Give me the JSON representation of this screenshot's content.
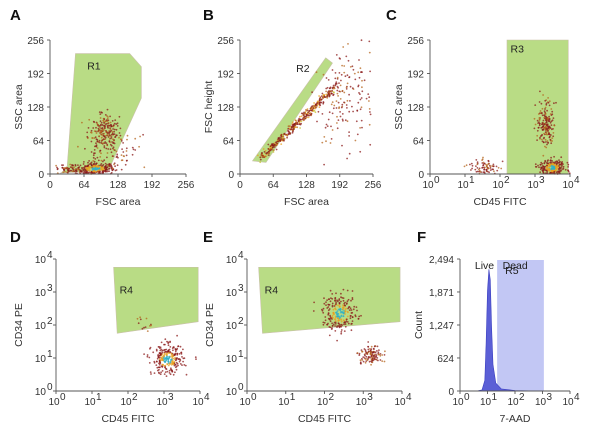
{
  "chart_data": [
    {
      "panel": "A",
      "type": "scatter",
      "xlabel": "FSC area",
      "ylabel": "SSC area",
      "xlim": [
        0,
        256
      ],
      "ylim": [
        0,
        256
      ],
      "scale": "linear",
      "xticks": [
        "0",
        "64",
        "128",
        "192",
        "256"
      ],
      "yticks": [
        "0",
        "64",
        "128",
        "192",
        "256"
      ],
      "gate": {
        "label": "R1",
        "vertices": [
          [
            20,
            2
          ],
          [
            32,
            10
          ],
          [
            48,
            230
          ],
          [
            150,
            230
          ],
          [
            172,
            205
          ],
          [
            172,
            145
          ],
          [
            110,
            7
          ]
        ]
      },
      "clusters": [
        {
          "x": 85,
          "y": 10,
          "sx": 18,
          "sy": 6,
          "n": 260,
          "hot": true
        },
        {
          "x": 100,
          "y": 80,
          "sx": 14,
          "sy": 18,
          "n": 200,
          "hot": false
        },
        {
          "x": 35,
          "y": 8,
          "sx": 12,
          "sy": 4,
          "n": 60,
          "hot": false
        },
        {
          "x": 120,
          "y": 40,
          "sx": 30,
          "sy": 25,
          "n": 90,
          "hot": false
        }
      ]
    },
    {
      "panel": "B",
      "type": "scatter",
      "xlabel": "FSC area",
      "ylabel": "FSC height",
      "xlim": [
        0,
        256
      ],
      "ylim": [
        0,
        256
      ],
      "scale": "linear",
      "xticks": [
        "0",
        "64",
        "128",
        "192",
        "256"
      ],
      "yticks": [
        "0",
        "64",
        "128",
        "192",
        "256"
      ],
      "gate": {
        "label": "R2",
        "vertices": [
          [
            24,
            25
          ],
          [
            165,
            222
          ],
          [
            178,
            212
          ],
          [
            50,
            22
          ]
        ]
      },
      "clusters": [
        {
          "x": 80,
          "y": 70,
          "line": true,
          "n": 260,
          "hot": true
        },
        {
          "x": 200,
          "y": 150,
          "sx": 30,
          "sy": 45,
          "n": 180,
          "hot": false
        },
        {
          "x": 140,
          "y": 130,
          "line": true,
          "n": 120,
          "hot": false
        }
      ]
    },
    {
      "panel": "C",
      "type": "scatter",
      "xlabel": "CD45 FITC",
      "ylabel": "SSC area",
      "xlim": [
        0,
        4
      ],
      "ylim": [
        0,
        256
      ],
      "scale": "log-x",
      "xticks": [
        "10",
        "10",
        "10",
        "10",
        "10"
      ],
      "xtick_exp": [
        "0",
        "1",
        "2",
        "3",
        "4"
      ],
      "yticks": [
        "0",
        "64",
        "128",
        "192",
        "256"
      ],
      "gate": {
        "label": "R3",
        "vertices": [
          [
            2.2,
            0
          ],
          [
            2.2,
            256
          ],
          [
            3.95,
            256
          ],
          [
            3.95,
            0
          ]
        ]
      },
      "clusters": [
        {
          "x": 3.3,
          "y": 95,
          "sx": 0.12,
          "sy": 20,
          "n": 180,
          "hot": false
        },
        {
          "x": 3.5,
          "y": 12,
          "sx": 0.18,
          "sy": 8,
          "n": 260,
          "hot": true
        },
        {
          "x": 1.6,
          "y": 12,
          "sx": 0.25,
          "sy": 8,
          "n": 80,
          "hot": false
        }
      ]
    },
    {
      "panel": "D",
      "type": "scatter",
      "xlabel": "CD45 FITC",
      "ylabel": "CD34 PE",
      "xlim": [
        0,
        4
      ],
      "ylim": [
        0,
        4
      ],
      "scale": "log-log",
      "xticks": [
        "10",
        "10",
        "10",
        "10",
        "10"
      ],
      "xtick_exp": [
        "0",
        "1",
        "2",
        "3",
        "4"
      ],
      "yticks": [
        "10",
        "10",
        "10",
        "10",
        "10"
      ],
      "ytick_exp": [
        "0",
        "1",
        "2",
        "3",
        "4"
      ],
      "gate": {
        "label": "R4",
        "vertices": [
          [
            1.6,
            3.75
          ],
          [
            3.95,
            3.75
          ],
          [
            3.95,
            2.1
          ],
          [
            1.7,
            1.75
          ]
        ]
      },
      "clusters": [
        {
          "x": 3.1,
          "y": 0.95,
          "sx": 0.22,
          "sy": 0.22,
          "n": 280,
          "hot": true
        },
        {
          "x": 2.5,
          "y": 2.0,
          "sx": 0.12,
          "sy": 0.1,
          "n": 12,
          "hot": false
        }
      ]
    },
    {
      "panel": "E",
      "type": "scatter",
      "xlabel": "CD45 FITC",
      "ylabel": "CD34 PE",
      "xlim": [
        0,
        4
      ],
      "ylim": [
        0,
        4
      ],
      "scale": "log-log",
      "xticks": [
        "10",
        "10",
        "10",
        "10",
        "10"
      ],
      "xtick_exp": [
        "0",
        "1",
        "2",
        "3",
        "4"
      ],
      "yticks": [
        "10",
        "10",
        "10",
        "10",
        "10"
      ],
      "ytick_exp": [
        "0",
        "1",
        "2",
        "3",
        "4"
      ],
      "gate": {
        "label": "R4",
        "vertices": [
          [
            0.3,
            3.75
          ],
          [
            3.95,
            3.75
          ],
          [
            3.95,
            2.1
          ],
          [
            0.4,
            1.75
          ]
        ]
      },
      "clusters": [
        {
          "x": 2.4,
          "y": 2.35,
          "sx": 0.22,
          "sy": 0.28,
          "n": 240,
          "hot": true
        },
        {
          "x": 3.2,
          "y": 1.1,
          "sx": 0.15,
          "sy": 0.15,
          "n": 120,
          "hot": false
        }
      ]
    },
    {
      "panel": "F",
      "type": "area",
      "xlabel": "7-AAD",
      "ylabel": "Count",
      "xlim": [
        0,
        4
      ],
      "ylim": [
        0,
        2494
      ],
      "scale": "log-x",
      "xticks": [
        "10",
        "10",
        "10",
        "10",
        "10"
      ],
      "xtick_exp": [
        "0",
        "1",
        "2",
        "3",
        "4"
      ],
      "yticks": [
        "0",
        "624",
        "1,247",
        "1,871",
        "2,494"
      ],
      "yvals": [
        0,
        624,
        1247,
        1871,
        2494
      ],
      "gate": {
        "label": "R5",
        "x0": 1.35,
        "x1": 3.05,
        "y": 2494
      },
      "annotations": [
        "Live",
        "Dead"
      ],
      "histogram": {
        "x": [
          0.6,
          0.8,
          0.9,
          0.95,
          1.0,
          1.05,
          1.1,
          1.15,
          1.2,
          1.3,
          1.5,
          2.0,
          3.0
        ],
        "y": [
          0,
          20,
          200,
          900,
          1900,
          2300,
          2100,
          1200,
          500,
          150,
          40,
          10,
          0
        ]
      }
    }
  ],
  "colors": {
    "gate": "#a9d46a",
    "gate_f": "#b7bdf2",
    "hist": "#5b5fd6",
    "dot": "#8b1a1a",
    "hot_mid": "#e8a020",
    "hot_core": "#2fb0c8"
  }
}
